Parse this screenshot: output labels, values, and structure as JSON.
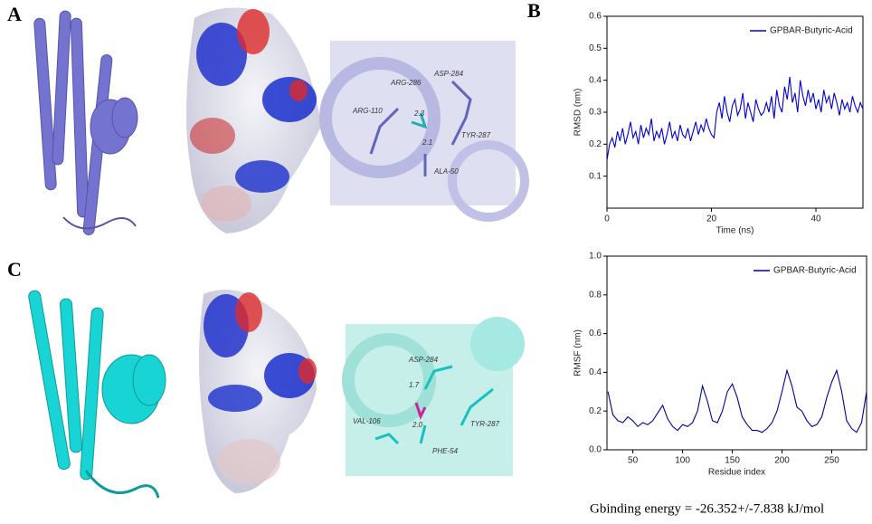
{
  "panel_labels": [
    "A",
    "B",
    "C"
  ],
  "structure_a": {
    "labels": [
      "ARG-286",
      "ASP-284",
      "ARG-110",
      "2.3",
      "TYR-287",
      "2.1",
      "ALA-50"
    ]
  },
  "structure_c": {
    "labels": [
      "ASP-284",
      "1.7",
      "2.0",
      "VAL-106",
      "TYR-287",
      "PHE-54"
    ]
  },
  "chart_data": [
    {
      "type": "line",
      "xlabel": "Time (ns)",
      "ylabel": "RMSD (nm)",
      "legend": "upper right",
      "xlim": [
        0,
        49
      ],
      "ylim": [
        0,
        0.6
      ],
      "xticks": [
        0,
        20,
        40
      ],
      "yticks": [
        0.1,
        0.2,
        0.3,
        0.4,
        0.5,
        0.6
      ],
      "x": [
        0,
        0.5,
        1,
        1.5,
        2,
        2.5,
        3,
        3.5,
        4,
        4.5,
        5,
        5.5,
        6,
        6.5,
        7,
        7.5,
        8,
        8.5,
        9,
        9.5,
        10,
        10.5,
        11,
        11.5,
        12,
        12.5,
        13,
        13.5,
        14,
        14.5,
        15,
        15.5,
        16,
        16.5,
        17,
        17.5,
        18,
        18.5,
        19,
        19.5,
        20,
        20.5,
        21,
        21.5,
        22,
        22.5,
        23,
        23.5,
        24,
        24.5,
        25,
        25.5,
        26,
        26.5,
        27,
        27.5,
        28,
        28.5,
        29,
        29.5,
        30,
        30.5,
        31,
        31.5,
        32,
        32.5,
        33,
        33.5,
        34,
        34.5,
        35,
        35.5,
        36,
        36.5,
        37,
        37.5,
        38,
        38.5,
        39,
        39.5,
        40,
        40.5,
        41,
        41.5,
        42,
        42.5,
        43,
        43.5,
        44,
        44.5,
        45,
        45.5,
        46,
        46.5,
        47,
        47.5,
        48,
        48.5,
        49
      ],
      "series": [
        {
          "name": "GPBAR-Butyric-Acid",
          "color": "#0000d0",
          "values": [
            0.15,
            0.2,
            0.22,
            0.19,
            0.24,
            0.21,
            0.25,
            0.2,
            0.23,
            0.27,
            0.22,
            0.24,
            0.2,
            0.26,
            0.22,
            0.25,
            0.23,
            0.28,
            0.21,
            0.24,
            0.22,
            0.25,
            0.2,
            0.23,
            0.27,
            0.22,
            0.24,
            0.21,
            0.26,
            0.23,
            0.22,
            0.25,
            0.21,
            0.24,
            0.27,
            0.23,
            0.26,
            0.24,
            0.28,
            0.25,
            0.23,
            0.22,
            0.3,
            0.33,
            0.28,
            0.35,
            0.3,
            0.27,
            0.32,
            0.34,
            0.29,
            0.31,
            0.36,
            0.28,
            0.33,
            0.3,
            0.27,
            0.34,
            0.31,
            0.29,
            0.3,
            0.33,
            0.3,
            0.35,
            0.28,
            0.37,
            0.32,
            0.3,
            0.38,
            0.34,
            0.41,
            0.33,
            0.36,
            0.3,
            0.4,
            0.35,
            0.32,
            0.37,
            0.33,
            0.36,
            0.31,
            0.34,
            0.3,
            0.37,
            0.33,
            0.35,
            0.31,
            0.36,
            0.33,
            0.29,
            0.34,
            0.31,
            0.33,
            0.3,
            0.35,
            0.32,
            0.3,
            0.33,
            0.31
          ]
        }
      ]
    },
    {
      "type": "line",
      "xlabel": "Residue index",
      "ylabel": "RMSF (nm)",
      "legend": "upper right",
      "xlim": [
        24,
        285
      ],
      "ylim": [
        0,
        1.0
      ],
      "xticks": [
        50,
        100,
        150,
        200,
        250
      ],
      "yticks": [
        {
          "value": 0,
          "label": "0.0"
        },
        {
          "value": 0.2,
          "label": "0.2"
        },
        0.4,
        0.6,
        0.8,
        {
          "value": 1.0,
          "label": "1.0"
        }
      ],
      "x": [
        25,
        30,
        35,
        40,
        45,
        50,
        55,
        60,
        65,
        70,
        75,
        80,
        85,
        90,
        95,
        100,
        105,
        110,
        115,
        120,
        125,
        130,
        135,
        140,
        145,
        150,
        155,
        160,
        165,
        170,
        175,
        180,
        185,
        190,
        195,
        200,
        205,
        210,
        215,
        220,
        225,
        230,
        235,
        240,
        245,
        250,
        255,
        260,
        265,
        270,
        275,
        280,
        285
      ],
      "series": [
        {
          "name": "GPBAR-Butyric-Acid",
          "color": "#00009a",
          "values": [
            0.3,
            0.18,
            0.15,
            0.14,
            0.17,
            0.15,
            0.12,
            0.14,
            0.13,
            0.15,
            0.19,
            0.23,
            0.16,
            0.12,
            0.1,
            0.13,
            0.12,
            0.14,
            0.2,
            0.33,
            0.25,
            0.15,
            0.14,
            0.2,
            0.3,
            0.34,
            0.27,
            0.17,
            0.13,
            0.1,
            0.1,
            0.09,
            0.11,
            0.14,
            0.2,
            0.3,
            0.41,
            0.33,
            0.22,
            0.2,
            0.15,
            0.12,
            0.13,
            0.17,
            0.27,
            0.35,
            0.41,
            0.3,
            0.15,
            0.11,
            0.09,
            0.14,
            0.3
          ]
        }
      ]
    }
  ],
  "binding_energy": "Gbinding energy = -26.352+/-7.838 kJ/mol"
}
